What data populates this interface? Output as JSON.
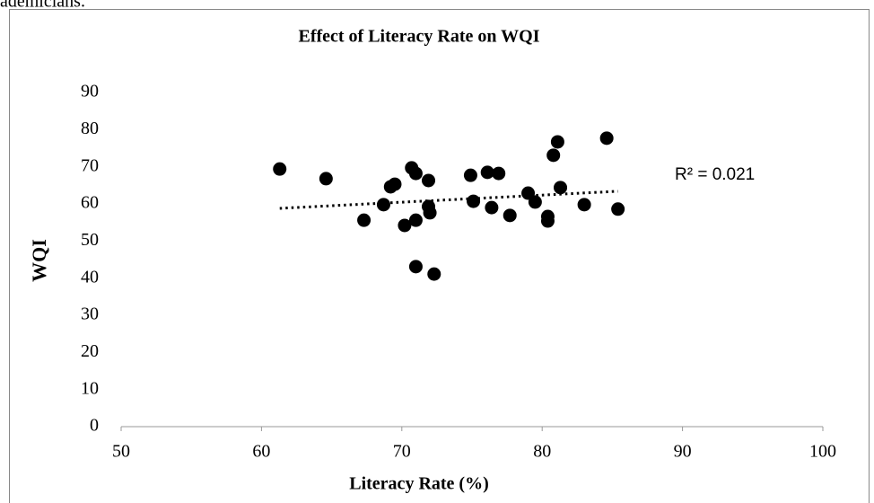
{
  "header_text": "ademicians.",
  "chart_data": {
    "type": "scatter",
    "title": "Effect of Literacy Rate on WQI",
    "x_label": "Literacy Rate (%)",
    "y_label": "WQI",
    "color": "#000000",
    "x": [
      61.3,
      64.6,
      67.3,
      68.7,
      69.2,
      69.5,
      70.2,
      70.7,
      71.0,
      71.0,
      71.0,
      71.9,
      72.0,
      71.9,
      72.3,
      74.9,
      75.1,
      76.1,
      76.4,
      76.9,
      77.7,
      79.0,
      79.5,
      80.4,
      80.4,
      80.8,
      81.1,
      81.3,
      83.0,
      84.6,
      85.4
    ],
    "values": [
      69.4,
      66.8,
      55.6,
      59.8,
      64.6,
      65.3,
      54.2,
      69.7,
      55.6,
      68.2,
      43.1,
      59.3,
      57.6,
      66.3,
      41.1,
      67.7,
      60.7,
      68.5,
      59.0,
      68.2,
      56.9,
      62.9,
      60.5,
      56.6,
      55.4,
      73.1,
      76.7,
      64.4,
      59.8,
      77.7,
      58.6
    ],
    "trendline": {
      "x": [
        61.3,
        85.4
      ],
      "values": [
        58.8,
        63.4
      ],
      "label": "R² = 0.021"
    },
    "xlim": [
      50,
      100
    ],
    "xticks": [
      50,
      60,
      70,
      80,
      90,
      100
    ],
    "ylim": [
      0,
      90
    ],
    "yticks": [
      0,
      10,
      20,
      30,
      40,
      50,
      60,
      70,
      80,
      90
    ],
    "grid": false
  }
}
